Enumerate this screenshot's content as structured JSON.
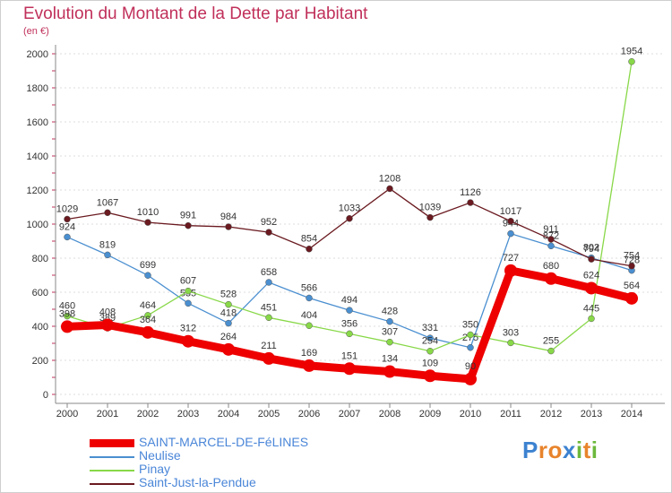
{
  "header": {
    "title": "Evolution du Montant de la Dette par Habitant",
    "subtitle": "(en €)"
  },
  "brand": {
    "letters": [
      "P",
      "r",
      "o",
      "x",
      "i",
      "t",
      "i"
    ],
    "colors": [
      "#3c82d0",
      "#e8842c",
      "#e8842c",
      "#3c82d0",
      "#6cb83c",
      "#e8842c",
      "#6cb83c"
    ]
  },
  "chart_data": {
    "type": "line",
    "title": "Evolution du Montant de la Dette par Habitant",
    "ylabel": "(en €)",
    "xlabel": "",
    "x": [
      "2000",
      "2001",
      "2002",
      "2003",
      "2004",
      "2005",
      "2006",
      "2007",
      "2008",
      "2009",
      "2010",
      "2011",
      "2012",
      "2013",
      "2014"
    ],
    "yticks": [
      "0",
      "200",
      "400",
      "600",
      "800",
      "1000",
      "1200",
      "1400",
      "1600",
      "1800",
      "2000"
    ],
    "ylim": [
      0,
      2000
    ],
    "grid": true,
    "legend": "bottom-left",
    "series": [
      {
        "name": "SAINT-MARCEL-DE-FéLINES",
        "color": "#ee0000",
        "emphasis": true,
        "values": [
          398,
          408,
          364,
          312,
          264,
          211,
          169,
          151,
          134,
          109,
          90,
          727,
          680,
          624,
          564
        ],
        "labels": [
          "398",
          "408",
          "364",
          "312",
          "264",
          "211",
          "169",
          "151",
          "134",
          "109",
          "90",
          "727",
          "680",
          "624",
          "564"
        ]
      },
      {
        "name": "Neulise",
        "color": "#4a8fd0",
        "emphasis": false,
        "values": [
          924,
          819,
          699,
          535,
          418,
          658,
          566,
          494,
          428,
          331,
          275,
          944,
          872,
          802,
          728
        ],
        "labels": [
          "924",
          "819",
          "699",
          "535",
          "418",
          "658",
          "566",
          "494",
          "428",
          "331",
          "275",
          "944",
          "872",
          "802",
          "728"
        ]
      },
      {
        "name": "Pinay",
        "color": "#88d848",
        "emphasis": false,
        "values": [
          460,
          389,
          464,
          607,
          528,
          451,
          404,
          356,
          307,
          254,
          350,
          303,
          255,
          445,
          1954
        ],
        "labels": [
          "460",
          "389",
          "464",
          "607",
          "528",
          "451",
          "404",
          "356",
          "307",
          "254",
          "350",
          "303",
          "255",
          "445",
          "1954"
        ]
      },
      {
        "name": "Saint-Just-la-Pendue",
        "color": "#6a1a20",
        "emphasis": false,
        "values": [
          1029,
          1067,
          1010,
          991,
          984,
          952,
          854,
          1033,
          1208,
          1039,
          1126,
          1017,
          911,
          794,
          754
        ],
        "labels": [
          "1029",
          "1067",
          "1010",
          "991",
          "984",
          "952",
          "854",
          "1033",
          "1208",
          "1039",
          "1126",
          "1017",
          "911",
          "794",
          "754"
        ]
      }
    ]
  }
}
